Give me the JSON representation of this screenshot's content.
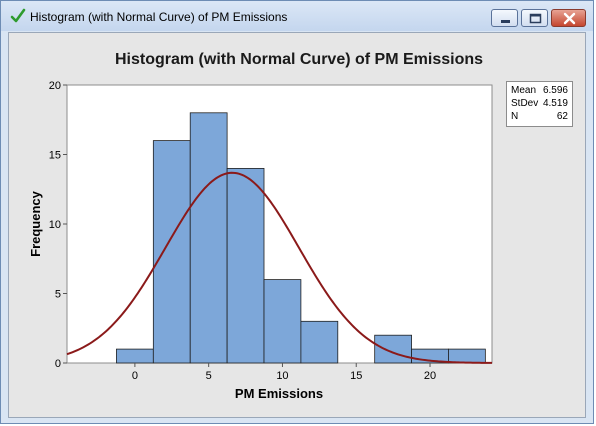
{
  "window": {
    "title": "Histogram (with Normal Curve) of PM Emissions",
    "icon": "green-checkmark-icon",
    "buttons": [
      "minimize",
      "maximize",
      "close"
    ]
  },
  "chart_data": {
    "type": "bar",
    "title": "Histogram (with Normal Curve) of PM Emissions",
    "xlabel": "PM Emissions",
    "ylabel": "Frequency",
    "bin_width": 2.5,
    "bins": [
      {
        "from": -1.25,
        "to": 1.25,
        "count": 1
      },
      {
        "from": 1.25,
        "to": 3.75,
        "count": 16
      },
      {
        "from": 3.75,
        "to": 6.25,
        "count": 18
      },
      {
        "from": 6.25,
        "to": 8.75,
        "count": 14
      },
      {
        "from": 8.75,
        "to": 11.25,
        "count": 6
      },
      {
        "from": 11.25,
        "to": 13.75,
        "count": 3
      },
      {
        "from": 13.75,
        "to": 16.25,
        "count": 0
      },
      {
        "from": 16.25,
        "to": 18.75,
        "count": 2
      },
      {
        "from": 18.75,
        "to": 21.25,
        "count": 1
      },
      {
        "from": 21.25,
        "to": 23.75,
        "count": 1
      }
    ],
    "x_ticks": [
      0,
      5,
      10,
      15,
      20
    ],
    "y_ticks": [
      0,
      5,
      10,
      15,
      20
    ],
    "xlim": [
      -4.6,
      24.2
    ],
    "ylim": [
      0,
      20
    ],
    "normal_curve": {
      "mean": 6.596,
      "stdev": 4.519,
      "n": 62
    },
    "grid": false,
    "legend": "none",
    "bar_color": "#7da7d9",
    "bar_edge_color": "#1f1f1f",
    "curve_color": "#8b1a1a",
    "plot_background": "#ffffff",
    "panel_background": "#e6e6e6"
  },
  "stats": [
    {
      "label": "Mean",
      "value": "6.596"
    },
    {
      "label": "StDev",
      "value": "4.519"
    },
    {
      "label": "N",
      "value": "62"
    }
  ]
}
